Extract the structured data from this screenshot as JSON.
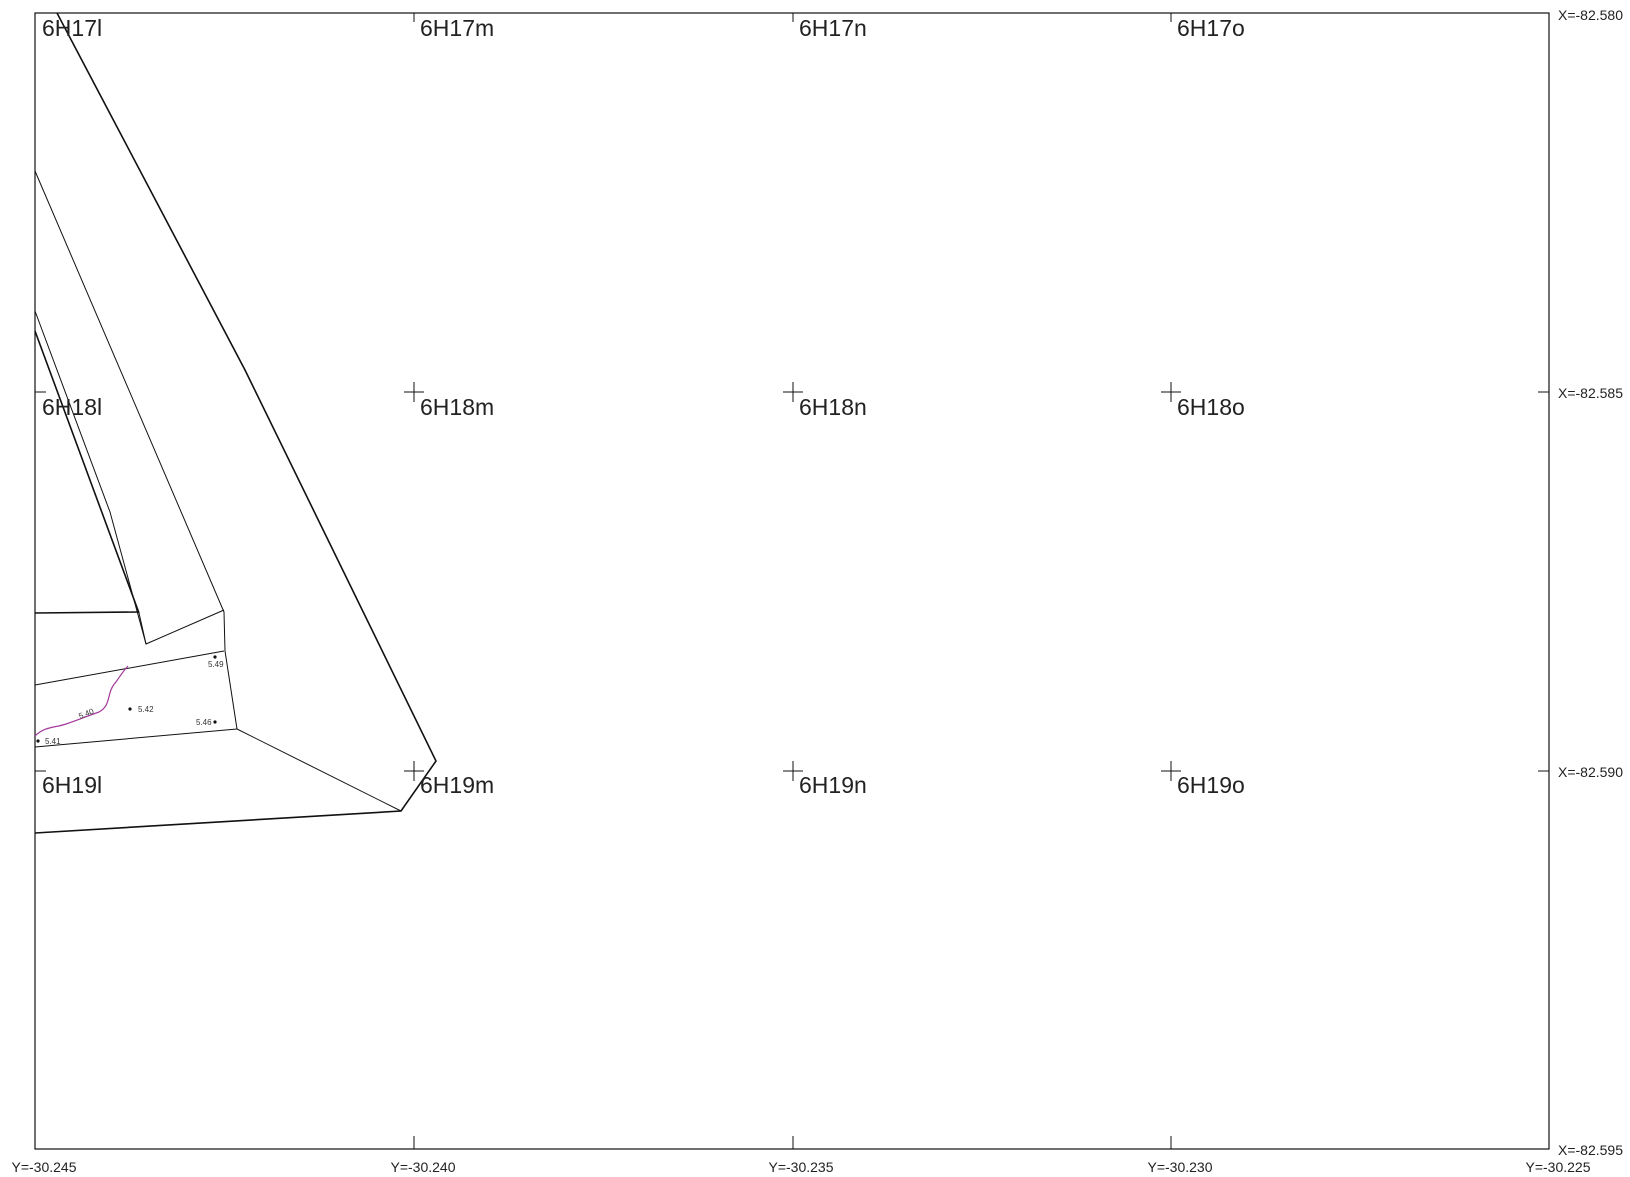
{
  "map": {
    "x_labels": [
      "X=-82.580",
      "X=-82.585",
      "X=-82.590",
      "X=-82.595"
    ],
    "y_labels": [
      "Y=-30.245",
      "Y=-30.240",
      "Y=-30.235",
      "Y=-30.230",
      "Y=-30.225"
    ],
    "sheets": [
      [
        "6H17l",
        "6H17m",
        "6H17n",
        "6H17o"
      ],
      [
        "6H18l",
        "6H18m",
        "6H18n",
        "6H18o"
      ],
      [
        "6H19l",
        "6H19m",
        "6H19n",
        "6H19o"
      ]
    ],
    "elevations": [
      "5.49",
      "5.40",
      "5.42",
      "5.46",
      "5.41"
    ],
    "colors": {
      "line": "#111111",
      "contour": "#a2399c",
      "background": "#ffffff"
    }
  }
}
